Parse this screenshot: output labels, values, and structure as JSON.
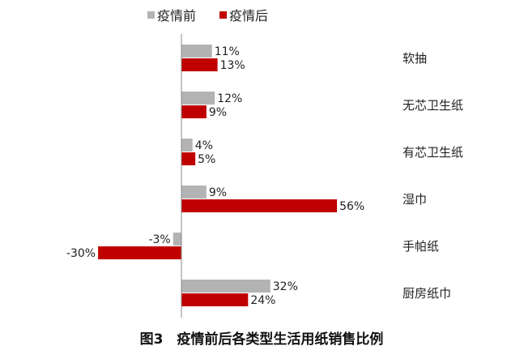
{
  "chart_data": {
    "type": "bar",
    "orientation": "horizontal",
    "title": "图3　疫情前后各类型生活用纸销售比例",
    "categories": [
      "软抽",
      "无芯卫生纸",
      "有芯卫生纸",
      "湿巾",
      "手帕纸",
      "厨房纸巾"
    ],
    "series": [
      {
        "name": "疫情前",
        "color": "#b3b3b3",
        "values": [
          11,
          12,
          4,
          9,
          -3,
          32
        ],
        "labels": [
          "11%",
          "12%",
          "4%",
          "9%",
          "-3%",
          "32%"
        ]
      },
      {
        "name": "疫情后",
        "color": "#c00000",
        "values": [
          13,
          9,
          5,
          56,
          -30,
          24
        ],
        "labels": [
          "13%",
          "9%",
          "5%",
          "56%",
          "-30%",
          "24%"
        ]
      }
    ],
    "unit": "%",
    "xlim": [
      -30,
      56
    ],
    "grid": false,
    "legend": "top"
  }
}
